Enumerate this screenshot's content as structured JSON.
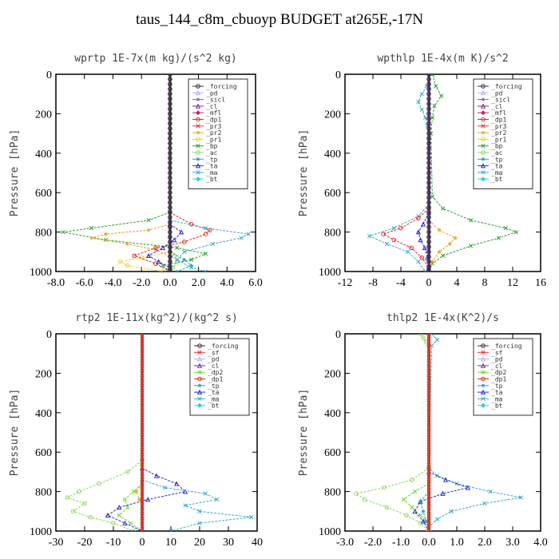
{
  "title": "taus_144_c8m_cbuoyp  BUDGET at265E,-17N",
  "colors": {
    "_forcing": "#333333",
    "_pd": "#c0a8f0",
    "_sicl": "#8a5cc8",
    "_cl": "#7a2aa0",
    "_mfl": "#b0306a",
    "_dp1": "#e02a2a",
    "_pr3": "#e83a3a",
    "_pr2": "#f0a020",
    "_pr1": "#f0d020",
    "_bp": "#30a030",
    "_ac": "#90d860",
    "_tp": "#2aa0b0",
    "_ta": "#2a2ad8",
    "_ma": "#40a8c8",
    "_bt": "#20d0e8",
    "_sf": "#e83030",
    "_dp2": "#70d030"
  },
  "chart_data": [
    {
      "type": "line",
      "title": "wprtp  1E-7x(m kg)/(s^2 kg)",
      "ylabel": "Pressure [hPa]",
      "xlim": [
        -8,
        6
      ],
      "ylim": [
        1000,
        0
      ],
      "xticks": [
        "-8.0",
        "-6.0",
        "-4.0",
        "-2.0",
        "0.0",
        "2.0",
        "4.0",
        "6.0"
      ],
      "xtick_values": [
        -8,
        -6,
        -4,
        -2,
        0,
        2,
        4,
        6
      ],
      "yticks": [
        "0",
        "200",
        "400",
        "600",
        "800",
        "1000"
      ],
      "ytick_values": [
        0,
        200,
        400,
        600,
        800,
        1000
      ],
      "legend": [
        "_forcing",
        "_pd",
        "_sicl",
        "_cl",
        "_mfl",
        "_dp1",
        "_pr3",
        "_pr2",
        "_pr1",
        "_bp",
        "_ac",
        "_tp",
        "_ta",
        "_ma",
        "_bt"
      ],
      "legend_position": "top-right",
      "series": [
        {
          "name": "_bp",
          "y": [
            700,
            740,
            780,
            800,
            840,
            880,
            910,
            940,
            970,
            1000
          ],
          "x": [
            0,
            -1.5,
            -5.5,
            -7.5,
            -4.5,
            0.5,
            2.5,
            1.5,
            -0.5,
            0
          ]
        },
        {
          "name": "_ac",
          "y": [
            880,
            920,
            950,
            980,
            1000
          ],
          "x": [
            0,
            0.3,
            0.5,
            0.2,
            0
          ]
        },
        {
          "name": "_pr2",
          "y": [
            760,
            790,
            810,
            830,
            860,
            890,
            920
          ],
          "x": [
            0,
            -1.5,
            -4.5,
            -5.5,
            -3.0,
            -1.0,
            0
          ]
        },
        {
          "name": "_pr1",
          "y": [
            900,
            930,
            950,
            970,
            1000
          ],
          "x": [
            0,
            -2.0,
            -3.5,
            -3.0,
            -0.5
          ]
        },
        {
          "name": "_dp1",
          "y": [
            700,
            760,
            790,
            810,
            850,
            880,
            920,
            960,
            1000
          ],
          "x": [
            0,
            1.5,
            2.8,
            2.5,
            1.0,
            -1.0,
            -2.5,
            -1.0,
            0
          ]
        },
        {
          "name": "_ma",
          "y": [
            740,
            780,
            810,
            830,
            860,
            900,
            940,
            980,
            1000
          ],
          "x": [
            0,
            2.5,
            5.5,
            5.0,
            3.0,
            1.0,
            0.5,
            1.5,
            2.5
          ]
        },
        {
          "name": "_ta",
          "y": [
            760,
            800,
            840,
            880,
            920,
            950,
            980
          ],
          "x": [
            0,
            0.8,
            0.3,
            -0.5,
            -1.5,
            -0.8,
            0
          ]
        },
        {
          "name": "_tp",
          "y": [
            900,
            940,
            970,
            1000
          ],
          "x": [
            0,
            1.0,
            1.5,
            0.5
          ]
        }
      ]
    },
    {
      "type": "line",
      "title": "wpthlp  1E-4x(m K)/s^2",
      "ylabel": "Pressure [hPa]",
      "xlim": [
        -12,
        16
      ],
      "ylim": [
        1000,
        0
      ],
      "xticks": [
        "-12",
        "-8",
        "-4",
        "0",
        "4",
        "8",
        "12",
        "16"
      ],
      "xtick_values": [
        -12,
        -8,
        -4,
        0,
        4,
        8,
        12,
        16
      ],
      "yticks": [
        "0",
        "200",
        "400",
        "600",
        "800",
        "1000"
      ],
      "ytick_values": [
        0,
        200,
        400,
        600,
        800,
        1000
      ],
      "legend": [
        "_forcing",
        "_pd",
        "_sicl",
        "_cl",
        "_mfl",
        "_dp1",
        "_pr3",
        "_pr2",
        "_pr1",
        "_bp",
        "_ac",
        "_tp",
        "_ta",
        "_ma",
        "_bt"
      ],
      "legend_position": "top-right",
      "series": [
        {
          "name": "_bp",
          "y": [
            0,
            60,
            110,
            160,
            220,
            300,
            620,
            680,
            740,
            780,
            800,
            830,
            870,
            920,
            960,
            1000
          ],
          "x": [
            0.5,
            1.0,
            1.8,
            0.8,
            0.5,
            0.3,
            0.5,
            2.0,
            6.0,
            11.0,
            12.5,
            10.0,
            6.0,
            2.0,
            0.5,
            0
          ]
        },
        {
          "name": "_ma",
          "y": [
            60,
            100,
            140,
            180,
            220,
            260,
            660,
            720,
            780,
            820,
            860,
            900,
            950,
            1000
          ],
          "x": [
            -0.3,
            -1.0,
            -1.5,
            -1.0,
            -0.5,
            -0.2,
            0,
            -1.5,
            -5.0,
            -8.5,
            -6.0,
            -3.0,
            -1.5,
            -0.5
          ]
        },
        {
          "name": "_dp1",
          "y": [
            680,
            730,
            780,
            810,
            840,
            880,
            930,
            980
          ],
          "x": [
            0,
            -1.5,
            -4.0,
            -6.5,
            -5.0,
            -2.5,
            -1.0,
            0
          ]
        },
        {
          "name": "_pr2",
          "y": [
            740,
            790,
            830,
            860,
            900,
            950
          ],
          "x": [
            0,
            1.5,
            3.8,
            3.0,
            1.5,
            0.5
          ]
        },
        {
          "name": "_ta",
          "y": [
            700,
            760,
            800,
            840,
            880,
            930,
            980
          ],
          "x": [
            0,
            -0.8,
            -1.5,
            -1.2,
            -0.6,
            -0.2,
            0
          ]
        }
      ]
    },
    {
      "type": "line",
      "title": "rtp2  1E-11x(kg^2)/(kg^2 s)",
      "ylabel": "Pressure [hPa]",
      "xlim": [
        -30,
        40
      ],
      "ylim": [
        1000,
        0
      ],
      "xticks": [
        "-30",
        "-20",
        "-10",
        "0",
        "10",
        "20",
        "30",
        "40"
      ],
      "xtick_values": [
        -30,
        -20,
        -10,
        0,
        10,
        20,
        30,
        40
      ],
      "yticks": [
        "0",
        "200",
        "400",
        "600",
        "800",
        "1000"
      ],
      "ytick_values": [
        0,
        200,
        400,
        600,
        800,
        1000
      ],
      "legend": [
        "_forcing",
        "_sf",
        "_pd",
        "_cl",
        "_dp2",
        "_dp1",
        "_tp",
        "_ta",
        "_ma",
        "_bt"
      ],
      "legend_position": "top-right",
      "series": [
        {
          "name": "_ac",
          "y": [
            640,
            700,
            760,
            800,
            830,
            860,
            900,
            930,
            960,
            1000
          ],
          "x": [
            0,
            -5,
            -15,
            -22,
            -26,
            -20,
            -24,
            -18,
            -10,
            -3
          ]
        },
        {
          "name": "_dp2",
          "y": [
            760,
            800,
            840,
            880,
            920,
            960,
            1000
          ],
          "x": [
            0,
            -3,
            -6,
            -5,
            -8,
            -4,
            0
          ]
        },
        {
          "name": "_ta",
          "y": [
            680,
            720,
            760,
            800,
            840,
            880,
            920,
            960,
            1000
          ],
          "x": [
            0,
            5,
            12,
            15,
            2,
            -8,
            -12,
            -6,
            0
          ]
        },
        {
          "name": "_ma",
          "y": [
            740,
            780,
            810,
            840,
            870,
            900,
            930,
            960,
            1000
          ],
          "x": [
            0,
            8,
            22,
            26,
            15,
            20,
            38,
            20,
            10
          ]
        },
        {
          "name": "_pr2",
          "y": [
            760,
            800,
            840,
            880
          ],
          "x": [
            0,
            -2,
            -1,
            0
          ]
        }
      ]
    },
    {
      "type": "line",
      "title": "thlp2  1E-4x(K^2)/s",
      "ylabel": "Pressure [hPa]",
      "xlim": [
        -3.0,
        4.0
      ],
      "ylim": [
        1000,
        0
      ],
      "xticks": [
        "-3.0",
        "-2.0",
        "-1.0",
        "0.0",
        "1.0",
        "2.0",
        "3.0",
        "4.0"
      ],
      "xtick_values": [
        -3,
        -2,
        -1,
        0,
        1,
        2,
        3,
        4
      ],
      "yticks": [
        "0",
        "200",
        "400",
        "600",
        "800",
        "1000"
      ],
      "ytick_values": [
        0,
        200,
        400,
        600,
        800,
        1000
      ],
      "legend": [
        "_forcing",
        "_sf",
        "_pd",
        "_cl",
        "_dp2",
        "_dp1",
        "_tp",
        "_ta",
        "_ma",
        "_bt"
      ],
      "legend_position": "top-right",
      "series": [
        {
          "name": "_ac",
          "y": [
            0,
            20,
            40,
            60,
            680,
            740,
            780,
            810,
            840,
            880,
            920,
            960,
            1000
          ],
          "x": [
            -0.3,
            -0.2,
            -0.1,
            0,
            0,
            -0.6,
            -1.6,
            -2.6,
            -2.3,
            -1.5,
            -0.8,
            -0.3,
            0
          ]
        },
        {
          "name": "_ma",
          "y": [
            0,
            30,
            60,
            680,
            720,
            760,
            800,
            830,
            860,
            900,
            940,
            980
          ],
          "x": [
            0.1,
            0.3,
            0.1,
            0,
            0.3,
            1.0,
            2.2,
            3.3,
            2.0,
            0.8,
            0.3,
            0
          ]
        },
        {
          "name": "_ta",
          "y": [
            700,
            740,
            780,
            810,
            850,
            900,
            950,
            1000
          ],
          "x": [
            0,
            0.6,
            1.4,
            0.5,
            -0.3,
            -0.5,
            -0.2,
            0
          ]
        },
        {
          "name": "_dp2",
          "y": [
            760,
            800,
            840,
            880,
            920,
            960
          ],
          "x": [
            0,
            -0.5,
            -0.9,
            -0.6,
            -0.3,
            0
          ]
        },
        {
          "name": "_tp",
          "y": [
            800,
            850,
            900,
            950,
            1000
          ],
          "x": [
            0,
            -0.3,
            -0.2,
            -0.1,
            0
          ]
        }
      ]
    }
  ]
}
